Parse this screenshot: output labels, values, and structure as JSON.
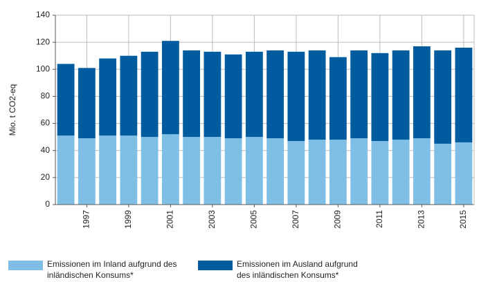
{
  "chart_data": {
    "type": "stacked_bar",
    "y_axis_label": "Mio. t CO2-eq",
    "categories": [
      null,
      "1997",
      null,
      "1999",
      null,
      "2001",
      null,
      "2003",
      null,
      "2005",
      null,
      "2007",
      null,
      "2009",
      null,
      "2011",
      null,
      "2013",
      null,
      "2015"
    ],
    "series": [
      {
        "name": "Emissionen im Inland aufgrund des inländischen Konsums*",
        "color": "#7fbfe6",
        "values": [
          51,
          49,
          51,
          51,
          50,
          52,
          50,
          50,
          49,
          50,
          49,
          47,
          48,
          48,
          49,
          47,
          48,
          49,
          45,
          46
        ]
      },
      {
        "name": "Emissionen im Ausland aufgrund des inländischen Konsums*",
        "color": "#005b9f",
        "values": [
          53,
          52,
          57,
          59,
          63,
          69,
          64,
          63,
          62,
          63,
          65,
          66,
          66,
          61,
          65,
          65,
          66,
          68,
          69,
          70
        ]
      }
    ],
    "ylim": [
      0,
      140
    ],
    "yticks": [
      0,
      20,
      40,
      60,
      80,
      100,
      120,
      140
    ],
    "grid": true
  }
}
